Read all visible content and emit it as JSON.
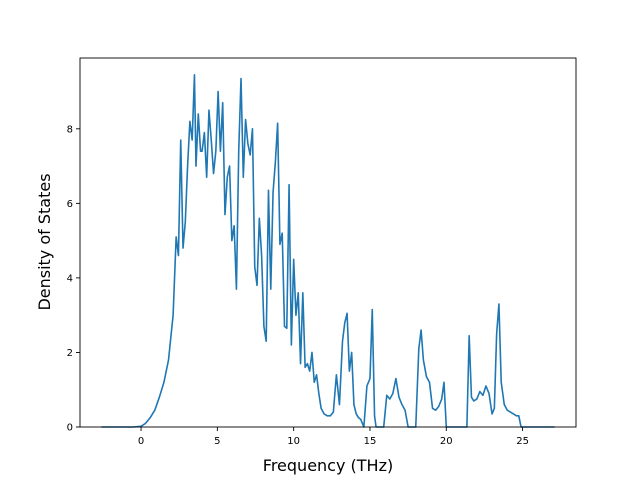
{
  "chart_data": {
    "type": "line",
    "title": "",
    "xlabel": "Frequency (THz)",
    "ylabel": "Density of States",
    "xlim": [
      -4.0,
      28.5
    ],
    "ylim": [
      0,
      9.9
    ],
    "xticks": [
      0,
      5,
      10,
      15,
      20,
      25
    ],
    "yticks": [
      0,
      2,
      4,
      6,
      8
    ],
    "grid": false,
    "legend": "none",
    "line_color": "#1f77b4",
    "series": [
      {
        "x": [
          -2.6,
          -1.5,
          -0.5,
          0.0,
          0.3,
          0.6,
          0.9,
          1.2,
          1.5,
          1.8,
          2.1,
          2.3,
          2.45,
          2.6,
          2.75,
          2.9,
          3.05,
          3.2,
          3.35,
          3.5,
          3.6,
          3.75,
          3.9,
          4.0,
          4.15,
          4.3,
          4.45,
          4.6,
          4.75,
          4.9,
          5.05,
          5.2,
          5.35,
          5.5,
          5.65,
          5.8,
          5.95,
          6.1,
          6.25,
          6.4,
          6.55,
          6.7,
          6.85,
          7.0,
          7.15,
          7.3,
          7.45,
          7.6,
          7.75,
          7.9,
          8.05,
          8.2,
          8.35,
          8.5,
          8.65,
          8.8,
          8.95,
          9.1,
          9.25,
          9.4,
          9.55,
          9.7,
          9.85,
          10.0,
          10.15,
          10.3,
          10.45,
          10.6,
          10.75,
          10.9,
          11.05,
          11.2,
          11.35,
          11.5,
          11.65,
          11.8,
          12.0,
          12.2,
          12.4,
          12.6,
          12.8,
          13.0,
          13.2,
          13.35,
          13.5,
          13.65,
          13.8,
          13.95,
          14.1,
          14.25,
          14.4,
          14.6,
          14.8,
          15.0,
          15.15,
          15.3,
          15.4,
          15.55,
          15.7,
          15.9,
          16.1,
          16.3,
          16.5,
          16.7,
          16.9,
          17.1,
          17.3,
          17.5,
          17.65,
          17.8,
          18.0,
          18.2,
          18.35,
          18.5,
          18.7,
          18.9,
          19.1,
          19.3,
          19.5,
          19.7,
          19.85,
          20.0,
          20.3,
          20.6,
          20.9,
          21.2,
          21.35,
          21.5,
          21.65,
          21.8,
          22.0,
          22.2,
          22.4,
          22.6,
          22.8,
          23.0,
          23.15,
          23.3,
          23.45,
          23.6,
          23.8,
          24.0,
          24.2,
          24.4,
          24.6,
          24.75,
          24.9,
          25.2,
          25.8,
          26.5,
          27.1
        ],
        "y": [
          0.0,
          0.0,
          0.0,
          0.02,
          0.1,
          0.25,
          0.45,
          0.8,
          1.2,
          1.8,
          3.0,
          5.1,
          4.6,
          7.7,
          4.8,
          5.5,
          7.0,
          8.2,
          7.7,
          9.45,
          7.0,
          8.4,
          7.4,
          7.4,
          7.9,
          6.7,
          8.5,
          7.7,
          6.8,
          7.4,
          9.0,
          7.4,
          8.7,
          5.7,
          6.7,
          7.0,
          5.0,
          5.4,
          3.7,
          7.4,
          9.35,
          6.7,
          8.25,
          7.6,
          7.3,
          8.0,
          4.3,
          3.8,
          5.6,
          4.6,
          2.7,
          2.3,
          6.35,
          3.7,
          6.3,
          7.1,
          8.15,
          4.9,
          5.2,
          2.7,
          2.65,
          6.5,
          2.2,
          4.5,
          3.0,
          3.6,
          1.7,
          3.6,
          1.6,
          1.7,
          1.5,
          2.0,
          1.2,
          1.4,
          0.9,
          0.5,
          0.35,
          0.3,
          0.3,
          0.4,
          1.4,
          0.6,
          2.3,
          2.8,
          3.05,
          1.5,
          2.0,
          0.6,
          0.35,
          0.25,
          0.2,
          0.0,
          1.1,
          1.3,
          3.15,
          0.3,
          0.0,
          0.0,
          0.0,
          0.0,
          0.85,
          0.75,
          0.9,
          1.3,
          0.8,
          0.6,
          0.45,
          0.0,
          0.0,
          0.0,
          0.0,
          2.1,
          2.6,
          1.8,
          1.35,
          1.2,
          0.5,
          0.45,
          0.55,
          0.75,
          1.2,
          0.0,
          0.0,
          0.0,
          0.0,
          0.0,
          0.0,
          2.45,
          0.8,
          0.7,
          0.75,
          0.95,
          0.85,
          1.1,
          0.9,
          0.35,
          0.5,
          2.5,
          3.3,
          1.2,
          0.6,
          0.45,
          0.4,
          0.35,
          0.3,
          0.3,
          0.0,
          0.0,
          0.0,
          0.0,
          0.0
        ]
      }
    ]
  }
}
